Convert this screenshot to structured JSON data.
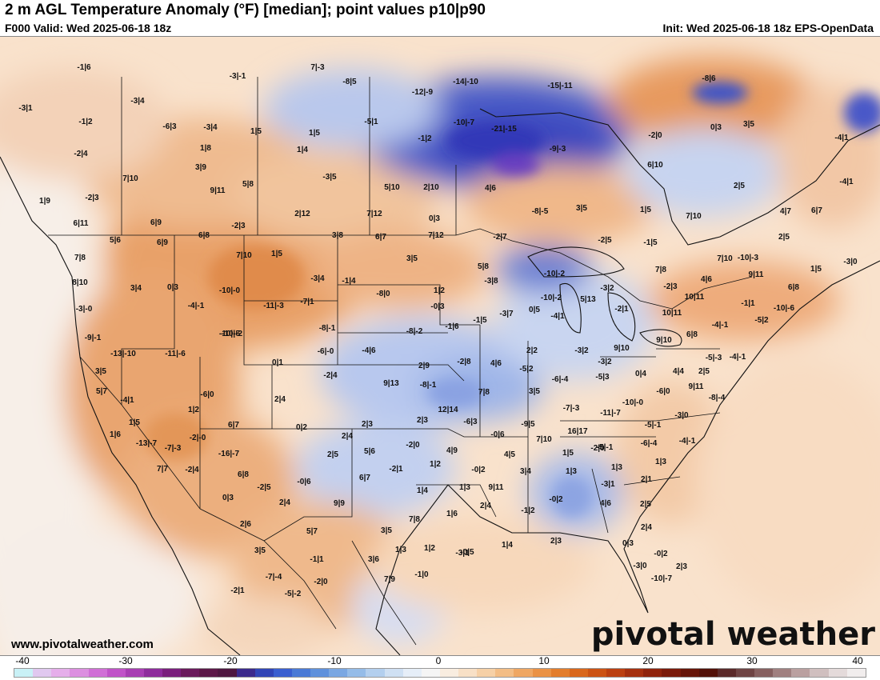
{
  "header": {
    "title": "2 m AGL Temperature Anomaly (°F) [median]; point values p10|p90",
    "valid": "F000 Valid: Wed 2025-06-18 18z",
    "init": "Init: Wed 2025-06-18 18z EPS-OpenData"
  },
  "footer": {
    "website": "www.pivotalweather.com",
    "logo": "pivotal weather"
  },
  "colorbar": {
    "ticks": [
      "-40",
      "-30",
      "-20",
      "-10",
      "0",
      "10",
      "20",
      "30",
      "40"
    ],
    "colors": [
      "#c9f1f6",
      "#e0c8ef",
      "#e5aeea",
      "#dc8fe0",
      "#d06fd6",
      "#c053c8",
      "#a83eb3",
      "#8e2c9c",
      "#7a1f7d",
      "#6a1a5c",
      "#5c1848",
      "#4e1740",
      "#3b2a8c",
      "#3145b6",
      "#3a5fd0",
      "#4a7ad6",
      "#5f91dc",
      "#7aa7e2",
      "#95bce8",
      "#b3cfee",
      "#cfe0f3",
      "#e6eef8",
      "#f5f5f5",
      "#f9ede0",
      "#f8e0c6",
      "#f6d0a6",
      "#f3bd85",
      "#efa763",
      "#ea9245",
      "#e37d2c",
      "#d9671c",
      "#cc5314",
      "#bb4011",
      "#a5300f",
      "#8f230c",
      "#7a1a0a",
      "#661509",
      "#521109",
      "#5a2a2a",
      "#6e4444",
      "#866060",
      "#a08080",
      "#baa0a0",
      "#d0bfbf",
      "#e4dada",
      "#f1eded"
    ]
  },
  "map_labels": [
    "-1|6",
    "-3|-1",
    "7|-3",
    "-8|5",
    "-12|-9",
    "-14|-10",
    "-15|-11",
    "-8|6",
    "-3|1",
    "-3|4",
    "-1|2",
    "-6|3",
    "-3|4",
    "1|5",
    "1|5",
    "-5|1",
    "-10|-7",
    "-21|-15",
    "-2|0",
    "0|3",
    "3|5",
    "-4|1",
    "-2|4",
    "1|8",
    "1|4",
    "-1|2",
    "-9|-3",
    "6|10",
    "3|9",
    "7|10",
    "9|11",
    "5|8",
    "-3|5",
    "5|10",
    "2|10",
    "4|6",
    "2|5",
    "-4|1",
    "-2|3",
    "6|11",
    "2|12",
    "7|12",
    "0|3",
    "-8|-5",
    "3|5",
    "1|5",
    "7|10",
    "4|7",
    "6|7",
    "6|9",
    "-2|3",
    "1|9",
    "3|8",
    "6|7",
    "7|12",
    "-2|7",
    "-2|5",
    "-1|5",
    "2|5",
    "5|6",
    "6|9",
    "6|8",
    "7|10",
    "1|5",
    "3|5",
    "5|8",
    "7|10",
    "-10|-3",
    "1|5",
    "-3|0",
    "7|8",
    "8|10",
    "3|4",
    "0|3",
    "-3|4",
    "-1|4",
    "-3|8",
    "-10|-2",
    "7|8",
    "4|6",
    "9|11",
    "6|8",
    "1|2",
    "-3|-0",
    "-4|-1",
    "-10|-0",
    "-11|-3",
    "-7|1",
    "-8|0",
    "-10|-2",
    "5|13",
    "-2|1",
    "-3|2",
    "-2|3",
    "10|11",
    "-1|1",
    "-10|-6",
    "-9|-1",
    "-10|-5",
    "-8|-1",
    "-8|-2",
    "-1|6",
    "-1|5",
    "-3|7",
    "0|5",
    "-4|1",
    "10|11",
    "-4|-1",
    "-5|2",
    "-10|-2",
    "-6|-0",
    "-4|6",
    "-0|3",
    "2|2",
    "-3|2",
    "9|10",
    "9|10",
    "6|8",
    "-5|-3",
    "-4|-1",
    "-13|-10",
    "-11|-6",
    "0|1",
    "-2|4",
    "2|9",
    "-2|8",
    "4|6",
    "-5|2",
    "-6|-4",
    "-3|2",
    "4|4",
    "2|5",
    "3|5",
    "9|13",
    "-8|-1",
    "-5|3",
    "0|4",
    "9|11",
    "5|7",
    "7|8",
    "3|5",
    "-6|0",
    "-8|-4",
    "-4|1",
    "-6|0",
    "2|4",
    "12|14",
    "-7|-3",
    "-11|-7",
    "-10|-0",
    "-3|0",
    "1|2",
    "2|3",
    "2|3",
    "-6|3",
    "-9|5",
    "-5|-1",
    "1|5",
    "6|7",
    "0|2",
    "2|4",
    "-0|6",
    "7|10",
    "16|17",
    "-5|-1",
    "-4|-1",
    "1|6",
    "-2|-0",
    "-13|-7",
    "-7|-3",
    "2|5",
    "5|6",
    "-2|0",
    "4|9",
    "4|5",
    "1|5",
    "-2|0",
    "-6|-4",
    "-16|-7",
    "1|2",
    "7|7",
    "-2|4",
    "-2|1",
    "-0|2",
    "3|4",
    "1|3",
    "1|3",
    "1|3",
    "6|8",
    "6|7",
    "9|11",
    "-3|1",
    "2|1",
    "-2|5",
    "-0|6",
    "1|4",
    "1|3",
    "0|3",
    "2|4",
    "9|9",
    "1|6",
    "2|4",
    "-1|2",
    "-0|2",
    "4|6",
    "2|5",
    "2|6",
    "7|8",
    "5|7",
    "3|5",
    "2|4",
    "3|5",
    "1|3",
    "1|2",
    "-3|1",
    "1|4",
    "2|3",
    "0|3",
    "-1|1",
    "3|6",
    "-0|5",
    "-0|2",
    "2|3",
    "-7|-4",
    "-2|0",
    "7|9",
    "-1|0",
    "-3|0",
    "-10|-7",
    "-2|1",
    "-5|-2"
  ]
}
